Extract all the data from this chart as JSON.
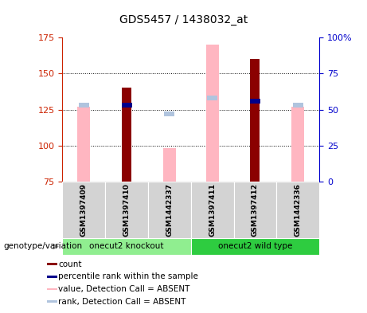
{
  "title": "GDS5457 / 1438032_at",
  "samples": [
    "GSM1397409",
    "GSM1397410",
    "GSM1442337",
    "GSM1397411",
    "GSM1397412",
    "GSM1442336"
  ],
  "count_values": [
    null,
    140,
    null,
    null,
    160,
    null
  ],
  "rank_values": [
    null,
    53,
    null,
    null,
    56,
    null
  ],
  "absent_value_values": [
    127,
    null,
    98,
    170,
    null,
    127
  ],
  "absent_rank_values": [
    53,
    53,
    47,
    58,
    null,
    53
  ],
  "ylim": [
    75,
    175
  ],
  "yticks_left": [
    75,
    100,
    125,
    150,
    175
  ],
  "yticks_right": [
    0,
    25,
    50,
    75,
    100
  ],
  "ylabel_left_color": "#cc2200",
  "ylabel_right_color": "#0000cc",
  "count_color": "#8b0000",
  "rank_color": "#00008b",
  "absent_value_color": "#ffb6c1",
  "absent_rank_color": "#b0c4de",
  "grid_color": "black",
  "knockout_color": "#90ee90",
  "wildtype_color": "#2ecc40",
  "legend_items": [
    {
      "color": "#8b0000",
      "label": "count"
    },
    {
      "color": "#00008b",
      "label": "percentile rank within the sample"
    },
    {
      "color": "#ffb6c1",
      "label": "value, Detection Call = ABSENT"
    },
    {
      "color": "#b0c4de",
      "label": "rank, Detection Call = ABSENT"
    }
  ]
}
